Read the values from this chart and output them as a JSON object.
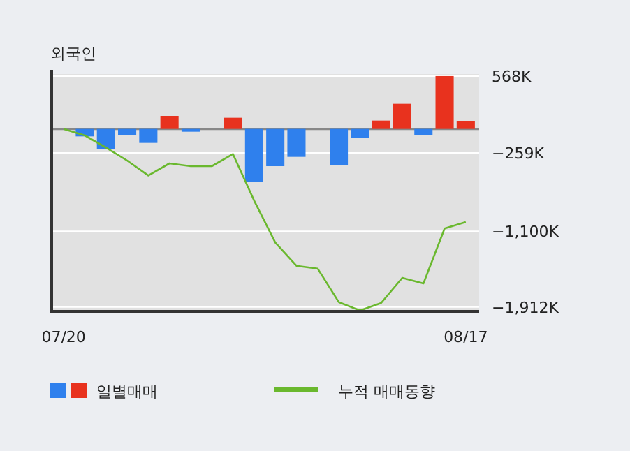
{
  "chart_data": {
    "type": "bar",
    "title": "외국인",
    "categories": [
      "07/20",
      null,
      null,
      null,
      null,
      null,
      null,
      null,
      null,
      null,
      null,
      null,
      null,
      null,
      null,
      null,
      null,
      null,
      null,
      "08/17"
    ],
    "series": [
      {
        "name": "일별매매",
        "colors": [
          "#e8321e",
          "#2f80ed",
          "#2f80ed",
          "#2f80ed",
          "#2f80ed",
          "#e8321e",
          "#2f80ed",
          "#e8321e",
          "#e8321e",
          "#2f80ed",
          "#2f80ed",
          "#2f80ed",
          "#e8321e",
          "#2f80ed",
          "#2f80ed",
          "#e8321e",
          "#e8321e",
          "#2f80ed",
          "#e8321e",
          "#e8321e"
        ],
        "values": [
          0,
          -80,
          -220,
          -70,
          -150,
          140,
          -30,
          0,
          120,
          -570,
          -400,
          -300,
          0,
          -390,
          -100,
          90,
          270,
          -70,
          568,
          80
        ]
      },
      {
        "name": "누적 매매동향",
        "type": "line",
        "color": "#6ab82e",
        "values": [
          0,
          -70,
          -200,
          -340,
          -500,
          -370,
          -400,
          -400,
          -270,
          -770,
          -1220,
          -1470,
          -1500,
          -1860,
          -1950,
          -1870,
          -1600,
          -1660,
          -1070,
          -1000
        ]
      }
    ],
    "ylim": [
      -1960,
      590
    ],
    "yticks": [
      {
        "value": 568,
        "label": "568K"
      },
      {
        "value": -259,
        "label": "−259K"
      },
      {
        "value": -1100,
        "label": "−1,100K"
      },
      {
        "value": -1912,
        "label": "−1,912K"
      }
    ],
    "grid": "y",
    "legend": "bottom"
  }
}
